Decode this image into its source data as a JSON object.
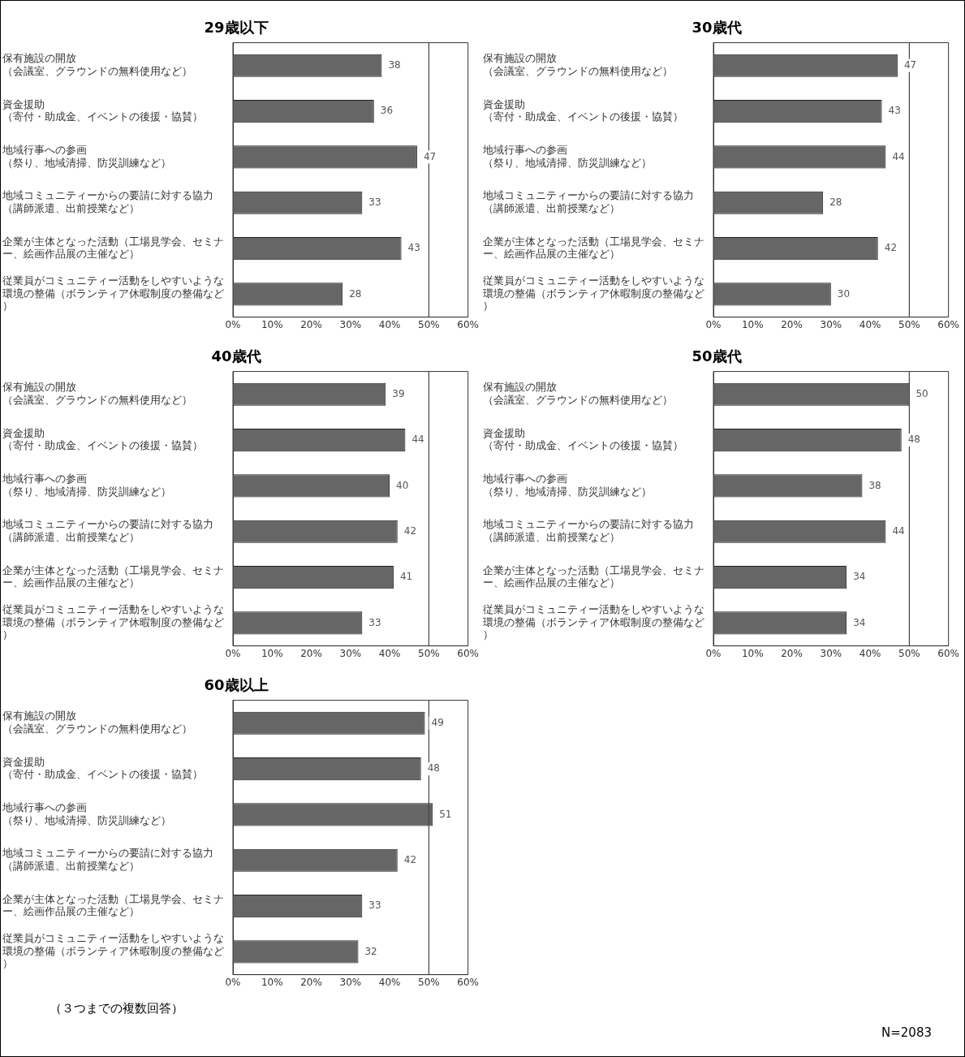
{
  "chart_data": [
    {
      "type": "bar",
      "orientation": "horizontal",
      "title": "29歳以下",
      "categories": [
        "保有施設の開放（会議室、グラウンドの無料使用など）",
        "資金援助（寄付・助成金、イベントの後援・協賛）",
        "地域行事への参画（祭り、地域清掃、防災訓練など）",
        "地域コミュニティーからの要請に対する協力（講師派遣、出前授業など）",
        "企業が主体となった活動（工場見学会、セミナー、絵画作品展の主催など）",
        "従業員がコミュニティー活動をしやすいような環境の整備（ボランティア休暇制度の整備など）"
      ],
      "values": [
        38,
        36,
        47,
        33,
        43,
        28
      ],
      "color": "#666666",
      "xlim": [
        0,
        60
      ],
      "xticks": [
        {
          "value": 0,
          "label": "0%"
        },
        {
          "value": 10,
          "label": "10%"
        },
        {
          "value": 20,
          "label": "20%"
        },
        {
          "value": 30,
          "label": "30%"
        },
        {
          "value": 40,
          "label": "40%"
        },
        {
          "value": 50,
          "label": "50%"
        },
        {
          "value": 60,
          "label": "60%"
        }
      ],
      "ref_lines": [
        {
          "axis": "x",
          "value": 50
        }
      ],
      "grid": false,
      "legend": false,
      "data_labels": true
    },
    {
      "type": "bar",
      "orientation": "horizontal",
      "title": "30歳代",
      "categories": [
        "保有施設の開放（会議室、グラウンドの無料使用など）",
        "資金援助（寄付・助成金、イベントの後援・協賛）",
        "地域行事への参画（祭り、地域清掃、防災訓練など）",
        "地域コミュニティーからの要請に対する協力（講師派遣、出前授業など）",
        "企業が主体となった活動（工場見学会、セミナー、絵画作品展の主催など）",
        "従業員がコミュニティー活動をしやすいような環境の整備（ボランティア休暇制度の整備など）"
      ],
      "values": [
        47,
        43,
        44,
        28,
        42,
        30
      ],
      "color": "#666666",
      "xlim": [
        0,
        60
      ],
      "xticks": [
        {
          "value": 0,
          "label": "0%"
        },
        {
          "value": 10,
          "label": "10%"
        },
        {
          "value": 20,
          "label": "20%"
        },
        {
          "value": 30,
          "label": "30%"
        },
        {
          "value": 40,
          "label": "40%"
        },
        {
          "value": 50,
          "label": "50%"
        },
        {
          "value": 60,
          "label": "60%"
        }
      ],
      "ref_lines": [
        {
          "axis": "x",
          "value": 50
        }
      ],
      "grid": false,
      "legend": false,
      "data_labels": true
    },
    {
      "type": "bar",
      "orientation": "horizontal",
      "title": "40歳代",
      "categories": [
        "保有施設の開放（会議室、グラウンドの無料使用など）",
        "資金援助（寄付・助成金、イベントの後援・協賛）",
        "地域行事への参画（祭り、地域清掃、防災訓練など）",
        "地域コミュニティーからの要請に対する協力（講師派遣、出前授業など）",
        "企業が主体となった活動（工場見学会、セミナー、絵画作品展の主催など）",
        "従業員がコミュニティー活動をしやすいような環境の整備（ボランティア休暇制度の整備など）"
      ],
      "values": [
        39,
        44,
        40,
        42,
        41,
        33
      ],
      "color": "#666666",
      "xlim": [
        0,
        60
      ],
      "xticks": [
        {
          "value": 0,
          "label": "0%"
        },
        {
          "value": 10,
          "label": "10%"
        },
        {
          "value": 20,
          "label": "20%"
        },
        {
          "value": 30,
          "label": "30%"
        },
        {
          "value": 40,
          "label": "40%"
        },
        {
          "value": 50,
          "label": "50%"
        },
        {
          "value": 60,
          "label": "60%"
        }
      ],
      "ref_lines": [
        {
          "axis": "x",
          "value": 50
        }
      ],
      "grid": false,
      "legend": false,
      "data_labels": true
    },
    {
      "type": "bar",
      "orientation": "horizontal",
      "title": "50歳代",
      "categories": [
        "保有施設の開放（会議室、グラウンドの無料使用など）",
        "資金援助（寄付・助成金、イベントの後援・協賛）",
        "地域行事への参画（祭り、地域清掃、防災訓練など）",
        "地域コミュニティーからの要請に対する協力（講師派遣、出前授業など）",
        "企業が主体となった活動（工場見学会、セミナー、絵画作品展の主催など）",
        "従業員がコミュニティー活動をしやすいような環境の整備（ボランティア休暇制度の整備など）"
      ],
      "values": [
        50,
        48,
        38,
        44,
        34,
        34
      ],
      "color": "#666666",
      "xlim": [
        0,
        60
      ],
      "xticks": [
        {
          "value": 0,
          "label": "0%"
        },
        {
          "value": 10,
          "label": "10%"
        },
        {
          "value": 20,
          "label": "20%"
        },
        {
          "value": 30,
          "label": "30%"
        },
        {
          "value": 40,
          "label": "40%"
        },
        {
          "value": 50,
          "label": "50%"
        },
        {
          "value": 60,
          "label": "60%"
        }
      ],
      "ref_lines": [
        {
          "axis": "x",
          "value": 50
        }
      ],
      "grid": false,
      "legend": false,
      "data_labels": true
    },
    {
      "type": "bar",
      "orientation": "horizontal",
      "title": "60歳以上",
      "categories": [
        "保有施設の開放（会議室、グラウンドの無料使用など）",
        "資金援助（寄付・助成金、イベントの後援・協賛）",
        "地域行事への参画（祭り、地域清掃、防災訓練など）",
        "地域コミュニティーからの要請に対する協力（講師派遣、出前授業など）",
        "企業が主体となった活動（工場見学会、セミナー、絵画作品展の主催など）",
        "従業員がコミュニティー活動をしやすいような環境の整備（ボランティア休暇制度の整備など）"
      ],
      "values": [
        49,
        48,
        51,
        42,
        33,
        32
      ],
      "color": "#666666",
      "xlim": [
        0,
        60
      ],
      "xticks": [
        {
          "value": 0,
          "label": "0%"
        },
        {
          "value": 10,
          "label": "10%"
        },
        {
          "value": 20,
          "label": "20%"
        },
        {
          "value": 30,
          "label": "30%"
        },
        {
          "value": 40,
          "label": "40%"
        },
        {
          "value": 50,
          "label": "50%"
        },
        {
          "value": 60,
          "label": "60%"
        }
      ],
      "ref_lines": [
        {
          "axis": "x",
          "value": 50
        }
      ],
      "grid": false,
      "legend": false,
      "data_labels": true,
      "annotations": [
        "（３つまでの複数回答）",
        "N=2083"
      ]
    }
  ]
}
